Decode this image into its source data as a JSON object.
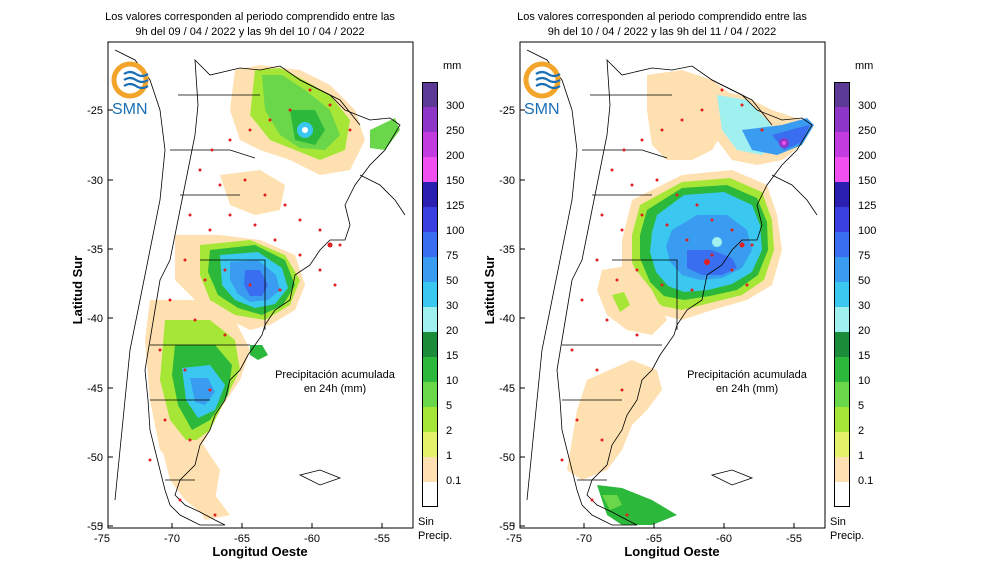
{
  "maps": [
    {
      "title_line1": "Los valores corresponden al periodo comprendido entre las",
      "title_line2": "9h del 09 / 04 / 2022  y las 9h del 10 / 04 / 2022",
      "logo_text": "SMN",
      "note_line1": "Precipitación acumulada",
      "note_line2": "en 24h (mm)"
    },
    {
      "title_line1": "Los valores corresponden al periodo comprendido entre las",
      "title_line2": "9h del 10 / 04 / 2022  y las 9h del 11 / 04 / 2022",
      "logo_text": "SMN",
      "note_line1": "Precipitación acumulada",
      "note_line2": "en 24h (mm)"
    }
  ],
  "axes": {
    "xlabel": "Longitud Oeste",
    "ylabel": "Latitud Sur",
    "x_ticks": [
      "-75",
      "-70",
      "-65",
      "-60",
      "-55"
    ],
    "y_ticks": [
      "-25",
      "-30",
      "-35",
      "-40",
      "-45",
      "-50",
      "-55"
    ],
    "x_range": [
      -75,
      -53
    ],
    "y_range": [
      -55.5,
      -21
    ]
  },
  "legend": {
    "unit": "mm",
    "no_precip_line1": "Sin",
    "no_precip_line2": "Precip.",
    "levels": [
      {
        "label": "300",
        "color": "#5b3a96"
      },
      {
        "label": "250",
        "color": "#8e36c8"
      },
      {
        "label": "200",
        "color": "#c23ce0"
      },
      {
        "label": "150",
        "color": "#f050f0"
      },
      {
        "label": "125",
        "color": "#2b1fb0"
      },
      {
        "label": "100",
        "color": "#3a40e0"
      },
      {
        "label": "75",
        "color": "#3a6ef0"
      },
      {
        "label": "50",
        "color": "#3a9cf0"
      },
      {
        "label": "30",
        "color": "#3ac8f0"
      },
      {
        "label": "20",
        "color": "#a0f0f0"
      },
      {
        "label": "15",
        "color": "#1a8c3a"
      },
      {
        "label": "10",
        "color": "#2cb83a"
      },
      {
        "label": "5",
        "color": "#6ad64a"
      },
      {
        "label": "2",
        "color": "#a6e636"
      },
      {
        "label": "1",
        "color": "#e4f26a"
      },
      {
        "label": "0.1",
        "color": "#ffe0b0"
      },
      {
        "label": "",
        "color": "#ffffff"
      }
    ]
  }
}
